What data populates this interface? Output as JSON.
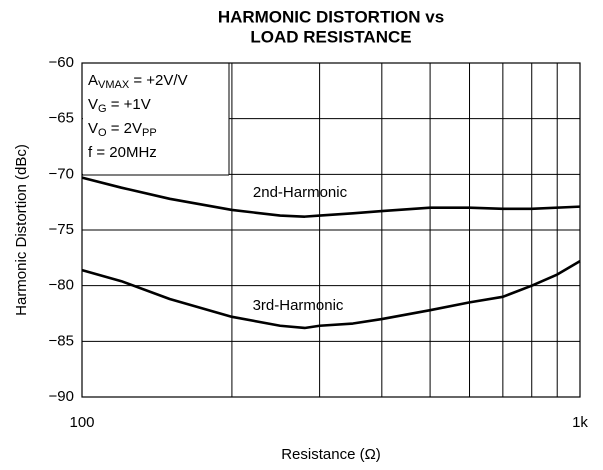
{
  "chart_data": {
    "type": "line",
    "title": [
      "HARMONIC DISTORTION vs",
      "LOAD RESISTANCE"
    ],
    "xlabel": "Resistance (Ω)",
    "ylabel": "Harmonic Distortion (dBc)",
    "xscale": "log",
    "xlim": [
      100,
      1000
    ],
    "xticks": [
      100,
      {
        "value": 1000,
        "label": "1k"
      }
    ],
    "xgrid": [
      200,
      300,
      400,
      500,
      600,
      700,
      800,
      900
    ],
    "ylim": [
      -90,
      -60
    ],
    "yticks": [
      {
        "value": -90,
        "label": "−90"
      },
      {
        "value": -85,
        "label": "−85"
      },
      {
        "value": -80,
        "label": "−80"
      },
      {
        "value": -75,
        "label": "−75"
      },
      {
        "value": -70,
        "label": "−70"
      },
      {
        "value": -65,
        "label": "−65"
      },
      {
        "value": -60,
        "label": "−60"
      }
    ],
    "grid": true,
    "annotation": [
      [
        {
          "text": "A"
        },
        {
          "text": "VMAX",
          "sub": true
        },
        {
          "text": " = +2V/V"
        }
      ],
      [
        {
          "text": "V"
        },
        {
          "text": "G",
          "sub": true
        },
        {
          "text": " = +1V"
        }
      ],
      [
        {
          "text": "V"
        },
        {
          "text": "O",
          "sub": true
        },
        {
          "text": " = 2V"
        },
        {
          "text": "PP",
          "sub": true
        }
      ],
      [
        {
          "text": "f = 20MHz"
        }
      ]
    ],
    "series": [
      {
        "name": "2nd-Harmonic",
        "color": "#000000",
        "x": [
          100,
          120,
          150,
          200,
          250,
          280,
          300,
          350,
          400,
          500,
          600,
          700,
          800,
          1000
        ],
        "values": [
          -70.3,
          -71.2,
          -72.2,
          -73.2,
          -73.7,
          -73.8,
          -73.7,
          -73.5,
          -73.3,
          -73.0,
          -73.0,
          -73.1,
          -73.1,
          -72.9
        ]
      },
      {
        "name": "3rd-Harmonic",
        "color": "#000000",
        "x": [
          100,
          120,
          150,
          200,
          250,
          280,
          300,
          350,
          400,
          500,
          600,
          700,
          800,
          900,
          1000
        ],
        "values": [
          -78.6,
          -79.6,
          -81.2,
          -82.8,
          -83.6,
          -83.8,
          -83.6,
          -83.4,
          -83.0,
          -82.2,
          -81.5,
          -81.0,
          -80.0,
          -79.0,
          -77.8
        ]
      }
    ]
  }
}
